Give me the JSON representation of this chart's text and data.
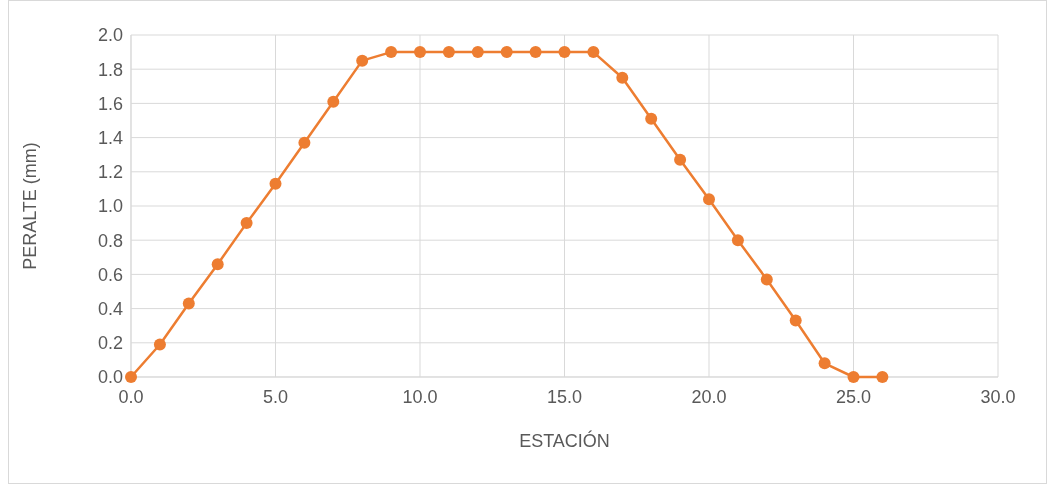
{
  "chart_data": {
    "type": "line",
    "xlabel": "ESTACIÓN",
    "ylabel": "PERALTE (mm)",
    "x": [
      0,
      1,
      2,
      3,
      4,
      5,
      6,
      7,
      8,
      9,
      10,
      11,
      12,
      13,
      14,
      15,
      16,
      17,
      18,
      19,
      20,
      21,
      22,
      23,
      24,
      25,
      26
    ],
    "series": [
      {
        "color": "#ed7d31",
        "values": [
          0,
          0.19,
          0.43,
          0.66,
          0.9,
          1.13,
          1.37,
          1.61,
          1.85,
          1.9,
          1.9,
          1.9,
          1.9,
          1.9,
          1.9,
          1.9,
          1.9,
          1.75,
          1.51,
          1.27,
          1.04,
          0.8,
          0.57,
          0.33,
          0.08,
          0,
          0
        ]
      }
    ],
    "xlim": [
      0,
      30
    ],
    "xticks": [
      {
        "value": 0,
        "label": "0.0"
      },
      {
        "value": 5,
        "label": "5.0"
      },
      {
        "value": 10,
        "label": "10.0"
      },
      {
        "value": 15,
        "label": "15.0"
      },
      {
        "value": 20,
        "label": "20.0"
      },
      {
        "value": 25,
        "label": "25.0"
      },
      {
        "value": 30,
        "label": "30.0"
      }
    ],
    "ylim": [
      0,
      2
    ],
    "yticks": [
      {
        "value": 0,
        "label": "0.0"
      },
      {
        "value": 0.2,
        "label": "0.2"
      },
      {
        "value": 0.4,
        "label": "0.4"
      },
      {
        "value": 0.6,
        "label": "0.6"
      },
      {
        "value": 0.8,
        "label": "0.8"
      },
      {
        "value": 1,
        "label": "1.0"
      },
      {
        "value": 1.2,
        "label": "1.2"
      },
      {
        "value": 1.4,
        "label": "1.4"
      },
      {
        "value": 1.6,
        "label": "1.6"
      },
      {
        "value": 1.8,
        "label": "1.8"
      },
      {
        "value": 2,
        "label": "2.0"
      }
    ],
    "grid": true,
    "marker": "circle",
    "line_style": "solid"
  }
}
